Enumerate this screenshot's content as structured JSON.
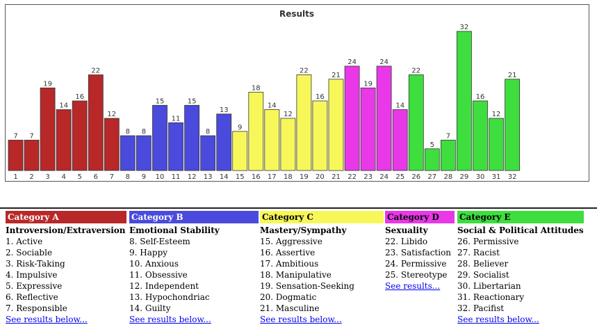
{
  "chart_data": {
    "type": "bar",
    "title": "Results",
    "categories": [
      "1",
      "2",
      "3",
      "4",
      "5",
      "6",
      "7",
      "8",
      "9",
      "10",
      "11",
      "12",
      "13",
      "14",
      "15",
      "16",
      "17",
      "18",
      "19",
      "20",
      "21",
      "22",
      "23",
      "24",
      "25",
      "26",
      "27",
      "28",
      "29",
      "30",
      "31",
      "32"
    ],
    "values": [
      7,
      7,
      19,
      14,
      16,
      22,
      12,
      8,
      8,
      15,
      11,
      15,
      8,
      13,
      9,
      18,
      14,
      12,
      22,
      16,
      21,
      24,
      19,
      24,
      14,
      22,
      5,
      7,
      32,
      16,
      12,
      21
    ],
    "bar_groups": [
      "A",
      "A",
      "A",
      "A",
      "A",
      "A",
      "A",
      "B",
      "B",
      "B",
      "B",
      "B",
      "B",
      "B",
      "C",
      "C",
      "C",
      "C",
      "C",
      "C",
      "C",
      "D",
      "D",
      "D",
      "D",
      "E",
      "E",
      "E",
      "E",
      "E",
      "E",
      "E"
    ],
    "ylim": [
      0,
      33
    ],
    "grid": false,
    "xlabel": "",
    "ylabel": ""
  },
  "colors": {
    "A": "#b82828",
    "B": "#4a4add",
    "C": "#f7f75a",
    "D": "#e838e8",
    "E": "#3ede3e"
  },
  "header_text_colors": {
    "A": "#ffffff",
    "B": "#ffffff",
    "C": "#000000",
    "D": "#000000",
    "E": "#000000"
  },
  "categories": [
    {
      "key": "A",
      "header": "Category A",
      "subtitle": "Introversion/Extraversion",
      "items": [
        "1. Active",
        "2. Sociable",
        "3. Risk-Taking",
        "4. Impulsive",
        "5. Expressive",
        "6. Reflective",
        "7. Responsible"
      ],
      "link": "See results below..."
    },
    {
      "key": "B",
      "header": "Category B",
      "subtitle": "Emotional Stability",
      "items": [
        "8. Self-Esteem",
        "9. Happy",
        "10. Anxious",
        "11. Obsessive",
        "12. Independent",
        "13. Hypochondriac",
        "14. Guilty"
      ],
      "link": "See results below..."
    },
    {
      "key": "C",
      "header": "Category C",
      "subtitle": "Mastery/Sympathy",
      "items": [
        "15. Aggressive",
        "16. Assertive",
        "17. Ambitious",
        "18. Manipulative",
        "19. Sensation-Seeking",
        "20. Dogmatic",
        "21. Masculine"
      ],
      "link": "See results below..."
    },
    {
      "key": "D",
      "header": "Category D",
      "subtitle": "Sexuality",
      "items": [
        "22. Libido",
        "23. Satisfaction",
        "24. Permissive",
        "25. Stereotype"
      ],
      "link": "See results..."
    },
    {
      "key": "E",
      "header": "Category E",
      "subtitle": "Social & Political Attitudes",
      "items": [
        "26. Permissive",
        "27. Racist",
        "28. Believer",
        "29. Socialist",
        "30. Libertarian",
        "31. Reactionary",
        "32. Pacifist"
      ],
      "link": "See results below..."
    }
  ]
}
